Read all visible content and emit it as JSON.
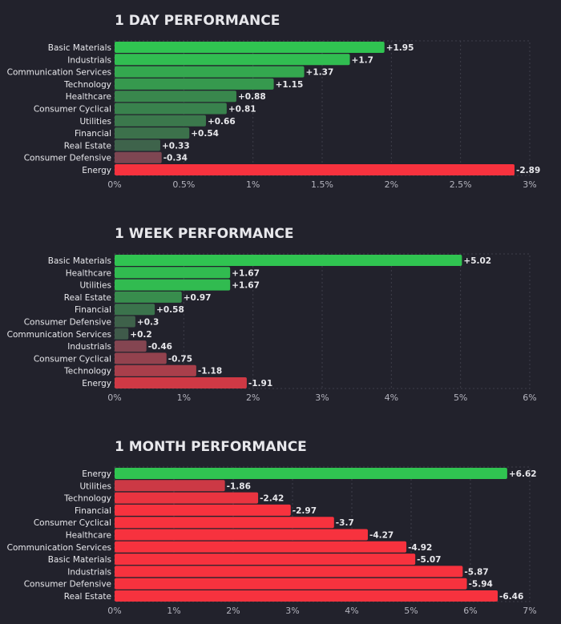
{
  "colors": {
    "background": "#22222c",
    "text": "#e8e8ec",
    "axis_text": "#b4b4be",
    "grid": "#3e3e4a",
    "positive_strong": "#30c451",
    "positive_weak": "#3f5a4a",
    "neutral": "#4c4a52",
    "negative_weak": "#7c4652",
    "negative_strong": "#f7323e"
  },
  "chart_data": [
    {
      "type": "bar",
      "orientation": "horizontal",
      "title": "1 DAY PERFORMANCE",
      "categories": [
        "Basic Materials",
        "Industrials",
        "Communication Services",
        "Technology",
        "Healthcare",
        "Consumer Cyclical",
        "Utilities",
        "Financial",
        "Real Estate",
        "Consumer Defensive",
        "Energy"
      ],
      "values": [
        1.95,
        1.7,
        1.37,
        1.15,
        0.88,
        0.81,
        0.66,
        0.54,
        0.33,
        -0.34,
        -2.89
      ],
      "value_labels": [
        "+1.95",
        "+1.7",
        "+1.37",
        "+1.15",
        "+0.88",
        "+0.81",
        "+0.66",
        "+0.54",
        "+0.33",
        "-0.34",
        "-2.89"
      ],
      "bar_length": "absolute value",
      "xlim": [
        0,
        3
      ],
      "ticks": [
        0,
        0.5,
        1,
        1.5,
        2,
        2.5,
        3
      ],
      "tick_labels": [
        "0%",
        "0.5%",
        "1%",
        "1.5%",
        "2%",
        "2.5%",
        "3%"
      ],
      "xlabel": "",
      "ylabel": "",
      "grid": true
    },
    {
      "type": "bar",
      "orientation": "horizontal",
      "title": "1 WEEK PERFORMANCE",
      "categories": [
        "Basic Materials",
        "Healthcare",
        "Utilities",
        "Real Estate",
        "Financial",
        "Consumer Defensive",
        "Communication Services",
        "Industrials",
        "Consumer Cyclical",
        "Technology",
        "Energy"
      ],
      "values": [
        5.02,
        1.67,
        1.67,
        0.97,
        0.58,
        0.3,
        0.2,
        -0.46,
        -0.75,
        -1.18,
        -1.91
      ],
      "value_labels": [
        "+5.02",
        "+1.67",
        "+1.67",
        "+0.97",
        "+0.58",
        "+0.3",
        "+0.2",
        "-0.46",
        "-0.75",
        "-1.18",
        "-1.91"
      ],
      "bar_length": "absolute value",
      "xlim": [
        0,
        6
      ],
      "ticks": [
        0,
        1,
        2,
        3,
        4,
        5,
        6
      ],
      "tick_labels": [
        "0%",
        "1%",
        "2%",
        "3%",
        "4%",
        "5%",
        "6%"
      ],
      "xlabel": "",
      "ylabel": "",
      "grid": true
    },
    {
      "type": "bar",
      "orientation": "horizontal",
      "title": "1 MONTH PERFORMANCE",
      "categories": [
        "Energy",
        "Utilities",
        "Technology",
        "Financial",
        "Consumer Cyclical",
        "Healthcare",
        "Communication Services",
        "Basic Materials",
        "Industrials",
        "Consumer Defensive",
        "Real Estate"
      ],
      "values": [
        6.62,
        -1.86,
        -2.42,
        -2.97,
        -3.7,
        -4.27,
        -4.92,
        -5.07,
        -5.87,
        -5.94,
        -6.46
      ],
      "value_labels": [
        "+6.62",
        "-1.86",
        "-2.42",
        "-2.97",
        "-3.7",
        "-4.27",
        "-4.92",
        "-5.07",
        "-5.87",
        "-5.94",
        "-6.46"
      ],
      "bar_length": "absolute value",
      "xlim": [
        0,
        7
      ],
      "ticks": [
        0,
        1,
        2,
        3,
        4,
        5,
        6,
        7
      ],
      "tick_labels": [
        "0%",
        "1%",
        "2%",
        "3%",
        "4%",
        "5%",
        "6%",
        "7%"
      ],
      "xlabel": "",
      "ylabel": "",
      "grid": true
    }
  ]
}
